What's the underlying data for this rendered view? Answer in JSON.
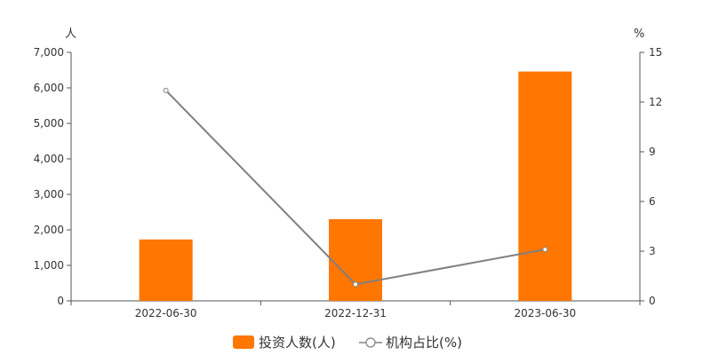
{
  "chart_data": {
    "type": "bar+line",
    "categories": [
      "2022-06-30",
      "2022-12-31",
      "2023-06-30"
    ],
    "left_axis": {
      "unit": "人",
      "ylim": [
        0,
        7000
      ],
      "ticks": [
        0,
        1000,
        2000,
        3000,
        4000,
        5000,
        6000,
        7000
      ],
      "tick_labels": [
        "0",
        "1,000",
        "2,000",
        "3,000",
        "4,000",
        "5,000",
        "6,000",
        "7,000"
      ]
    },
    "right_axis": {
      "unit": "%",
      "ylim": [
        0,
        15
      ],
      "ticks": [
        0,
        3,
        6,
        9,
        12,
        15
      ],
      "tick_labels": [
        "0",
        "3",
        "6",
        "9",
        "12",
        "15"
      ]
    },
    "series": [
      {
        "name": "投资人数(人)",
        "type": "bar",
        "axis": "left",
        "color": "#ff7700",
        "values": [
          1730,
          2300,
          6460
        ]
      },
      {
        "name": "机构占比(%)",
        "type": "line",
        "axis": "right",
        "color": "#808080",
        "values": [
          12.7,
          1.0,
          3.1
        ]
      }
    ],
    "legend": {
      "placement": "bottom-center"
    },
    "grid": false
  }
}
